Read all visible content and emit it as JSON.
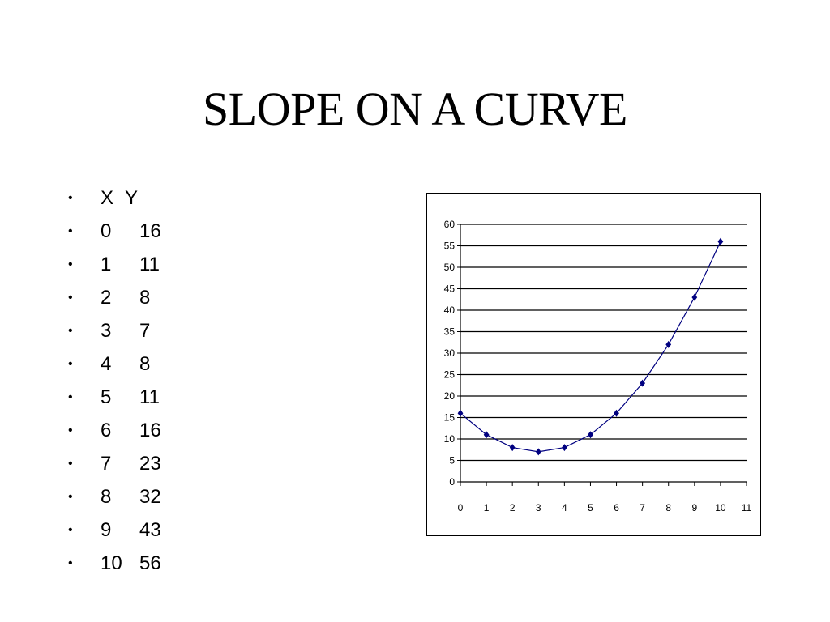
{
  "slide": {
    "title": "SLOPE ON A CURVE"
  },
  "table": {
    "header": {
      "x": "X",
      "y": "Y"
    },
    "rows": [
      {
        "x": "0",
        "y": "16"
      },
      {
        "x": "1",
        "y": "11"
      },
      {
        "x": "2",
        "y": "8"
      },
      {
        "x": "3",
        "y": "7"
      },
      {
        "x": "4",
        "y": "8"
      },
      {
        "x": "5",
        "y": "11"
      },
      {
        "x": "6",
        "y": "16"
      },
      {
        "x": "7",
        "y": "23"
      },
      {
        "x": "8",
        "y": "32"
      },
      {
        "x": "9",
        "y": "43"
      },
      {
        "x": "10",
        "y": "56"
      }
    ]
  },
  "chart_data": {
    "type": "line",
    "title": "",
    "xlabel": "",
    "ylabel": "",
    "x": [
      0,
      1,
      2,
      3,
      4,
      5,
      6,
      7,
      8,
      9,
      10
    ],
    "series": [
      {
        "values": [
          16,
          11,
          8,
          7,
          8,
          11,
          16,
          23,
          32,
          43,
          56
        ],
        "color": "#000080",
        "marker": "diamond"
      }
    ],
    "xlim": [
      0,
      11
    ],
    "ylim": [
      0,
      60
    ],
    "x_ticks": [
      "0",
      "1",
      "2",
      "3",
      "4",
      "5",
      "6",
      "7",
      "8",
      "9",
      "10",
      "11"
    ],
    "y_ticks": [
      "0",
      "5",
      "10",
      "15",
      "20",
      "25",
      "30",
      "35",
      "40",
      "45",
      "50",
      "55",
      "60"
    ],
    "grid": "horizontal",
    "legend": "none"
  }
}
